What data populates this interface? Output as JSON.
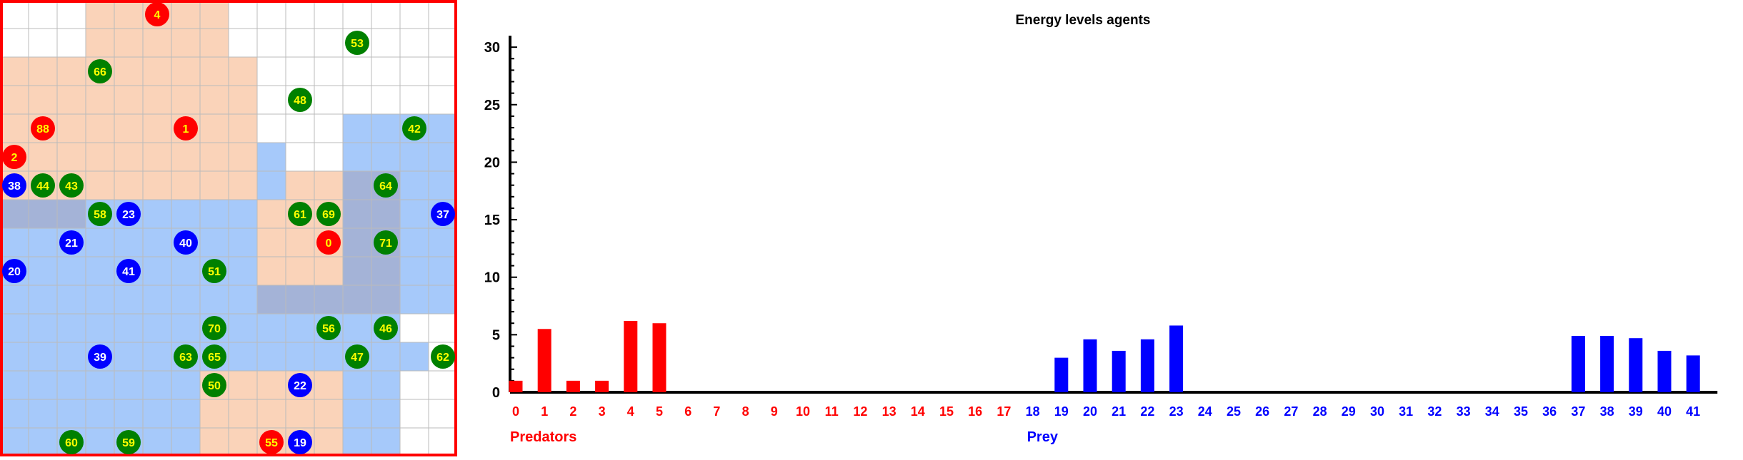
{
  "colors": {
    "predator": "#ff0000",
    "prey": "#0000ff",
    "food": "#008000",
    "predator_label": "#ffff00",
    "prey_label": "#ffffff",
    "food_label": "#ffff00",
    "predator_zone": "#f5a873",
    "prey_zone": "#4d94f5",
    "grid_line": "#bbbbbb",
    "frame": "#ff0000"
  },
  "grid": {
    "rows": 16,
    "cols": 16,
    "zones": [
      {
        "kind": "predator",
        "cells": [
          [
            3,
            0
          ],
          [
            4,
            0
          ],
          [
            5,
            0
          ],
          [
            6,
            0
          ],
          [
            7,
            0
          ],
          [
            3,
            1
          ],
          [
            4,
            1
          ],
          [
            5,
            1
          ],
          [
            6,
            1
          ],
          [
            7,
            1
          ],
          [
            0,
            2
          ],
          [
            1,
            2
          ],
          [
            2,
            2
          ],
          [
            3,
            2
          ],
          [
            4,
            2
          ],
          [
            5,
            2
          ],
          [
            6,
            2
          ],
          [
            7,
            2
          ],
          [
            8,
            2
          ],
          [
            0,
            3
          ],
          [
            1,
            3
          ],
          [
            2,
            3
          ],
          [
            3,
            3
          ],
          [
            4,
            3
          ],
          [
            5,
            3
          ],
          [
            6,
            3
          ],
          [
            7,
            3
          ],
          [
            8,
            3
          ],
          [
            0,
            4
          ],
          [
            1,
            4
          ],
          [
            2,
            4
          ],
          [
            3,
            4
          ],
          [
            4,
            4
          ],
          [
            5,
            4
          ],
          [
            6,
            4
          ],
          [
            7,
            4
          ],
          [
            8,
            4
          ],
          [
            0,
            5
          ],
          [
            1,
            5
          ],
          [
            2,
            5
          ],
          [
            3,
            5
          ],
          [
            4,
            5
          ],
          [
            5,
            5
          ],
          [
            6,
            5
          ],
          [
            7,
            5
          ],
          [
            8,
            5
          ],
          [
            0,
            6
          ],
          [
            1,
            6
          ],
          [
            2,
            6
          ],
          [
            3,
            6
          ],
          [
            4,
            6
          ],
          [
            5,
            6
          ],
          [
            6,
            6
          ],
          [
            7,
            6
          ],
          [
            8,
            6
          ],
          [
            0,
            7
          ],
          [
            1,
            7
          ],
          [
            2,
            7
          ],
          [
            10,
            6
          ],
          [
            11,
            6
          ],
          [
            12,
            6
          ],
          [
            13,
            6
          ],
          [
            9,
            7
          ],
          [
            10,
            7
          ],
          [
            11,
            7
          ],
          [
            12,
            7
          ],
          [
            13,
            7
          ],
          [
            9,
            8
          ],
          [
            10,
            8
          ],
          [
            11,
            8
          ],
          [
            12,
            8
          ],
          [
            13,
            8
          ],
          [
            9,
            9
          ],
          [
            10,
            9
          ],
          [
            11,
            9
          ],
          [
            12,
            9
          ],
          [
            13,
            9
          ],
          [
            9,
            10
          ],
          [
            10,
            10
          ],
          [
            11,
            10
          ],
          [
            12,
            10
          ],
          [
            13,
            10
          ],
          [
            7,
            13
          ],
          [
            8,
            13
          ],
          [
            9,
            13
          ],
          [
            10,
            13
          ],
          [
            11,
            13
          ],
          [
            7,
            14
          ],
          [
            8,
            14
          ],
          [
            9,
            14
          ],
          [
            10,
            14
          ],
          [
            11,
            14
          ],
          [
            7,
            15
          ],
          [
            8,
            15
          ],
          [
            9,
            15
          ],
          [
            10,
            15
          ],
          [
            11,
            15
          ]
        ]
      },
      {
        "kind": "prey",
        "cells": [
          [
            12,
            4
          ],
          [
            13,
            4
          ],
          [
            14,
            4
          ],
          [
            15,
            4
          ],
          [
            9,
            5
          ],
          [
            12,
            5
          ],
          [
            13,
            5
          ],
          [
            14,
            5
          ],
          [
            15,
            5
          ],
          [
            9,
            6
          ],
          [
            12,
            6
          ],
          [
            13,
            6
          ],
          [
            14,
            6
          ],
          [
            15,
            6
          ],
          [
            0,
            7
          ],
          [
            1,
            7
          ],
          [
            2,
            7
          ],
          [
            3,
            7
          ],
          [
            4,
            7
          ],
          [
            5,
            7
          ],
          [
            6,
            7
          ],
          [
            7,
            7
          ],
          [
            8,
            7
          ],
          [
            12,
            7
          ],
          [
            13,
            7
          ],
          [
            14,
            7
          ],
          [
            15,
            7
          ],
          [
            0,
            8
          ],
          [
            1,
            8
          ],
          [
            2,
            8
          ],
          [
            3,
            8
          ],
          [
            4,
            8
          ],
          [
            5,
            8
          ],
          [
            6,
            8
          ],
          [
            7,
            8
          ],
          [
            8,
            8
          ],
          [
            12,
            8
          ],
          [
            13,
            8
          ],
          [
            14,
            8
          ],
          [
            15,
            8
          ],
          [
            0,
            9
          ],
          [
            1,
            9
          ],
          [
            2,
            9
          ],
          [
            3,
            9
          ],
          [
            4,
            9
          ],
          [
            5,
            9
          ],
          [
            6,
            9
          ],
          [
            7,
            9
          ],
          [
            8,
            9
          ],
          [
            12,
            9
          ],
          [
            13,
            9
          ],
          [
            14,
            9
          ],
          [
            15,
            9
          ],
          [
            0,
            10
          ],
          [
            1,
            10
          ],
          [
            2,
            10
          ],
          [
            3,
            10
          ],
          [
            4,
            10
          ],
          [
            5,
            10
          ],
          [
            6,
            10
          ],
          [
            7,
            10
          ],
          [
            8,
            10
          ],
          [
            9,
            10
          ],
          [
            10,
            10
          ],
          [
            11,
            10
          ],
          [
            12,
            10
          ],
          [
            13,
            10
          ],
          [
            14,
            10
          ],
          [
            15,
            10
          ],
          [
            0,
            11
          ],
          [
            1,
            11
          ],
          [
            2,
            11
          ],
          [
            3,
            11
          ],
          [
            4,
            11
          ],
          [
            5,
            11
          ],
          [
            6,
            11
          ],
          [
            7,
            11
          ],
          [
            8,
            11
          ],
          [
            9,
            11
          ],
          [
            10,
            11
          ],
          [
            11,
            11
          ],
          [
            12,
            11
          ],
          [
            13,
            11
          ],
          [
            0,
            12
          ],
          [
            1,
            12
          ],
          [
            2,
            12
          ],
          [
            3,
            12
          ],
          [
            4,
            12
          ],
          [
            5,
            12
          ],
          [
            6,
            12
          ],
          [
            7,
            12
          ],
          [
            8,
            12
          ],
          [
            9,
            12
          ],
          [
            10,
            12
          ],
          [
            11,
            12
          ],
          [
            12,
            12
          ],
          [
            13,
            12
          ],
          [
            14,
            12
          ],
          [
            0,
            13
          ],
          [
            1,
            13
          ],
          [
            2,
            13
          ],
          [
            3,
            13
          ],
          [
            4,
            13
          ],
          [
            5,
            13
          ],
          [
            6,
            13
          ],
          [
            12,
            13
          ],
          [
            13,
            13
          ],
          [
            0,
            14
          ],
          [
            1,
            14
          ],
          [
            2,
            14
          ],
          [
            3,
            14
          ],
          [
            4,
            14
          ],
          [
            5,
            14
          ],
          [
            6,
            14
          ],
          [
            12,
            14
          ],
          [
            13,
            14
          ],
          [
            0,
            15
          ],
          [
            1,
            15
          ],
          [
            2,
            15
          ],
          [
            3,
            15
          ],
          [
            4,
            15
          ],
          [
            5,
            15
          ],
          [
            6,
            15
          ],
          [
            12,
            15
          ],
          [
            13,
            15
          ]
        ]
      }
    ],
    "agents": [
      {
        "id": "4",
        "type": "predator",
        "col": 5,
        "row": 0
      },
      {
        "id": "53",
        "type": "food",
        "col": 12,
        "row": 1
      },
      {
        "id": "66",
        "type": "food",
        "col": 3,
        "row": 2
      },
      {
        "id": "48",
        "type": "food",
        "col": 10,
        "row": 3
      },
      {
        "id": "88",
        "type": "predator",
        "col": 1,
        "row": 4
      },
      {
        "id": "1",
        "type": "predator",
        "col": 6,
        "row": 4
      },
      {
        "id": "42",
        "type": "food",
        "col": 14,
        "row": 4
      },
      {
        "id": "2",
        "type": "predator",
        "col": 0,
        "row": 5
      },
      {
        "id": "38",
        "type": "prey",
        "col": 0,
        "row": 6
      },
      {
        "id": "44",
        "type": "food",
        "col": 1,
        "row": 6
      },
      {
        "id": "43",
        "type": "food",
        "col": 2,
        "row": 6
      },
      {
        "id": "64",
        "type": "food",
        "col": 13,
        "row": 6
      },
      {
        "id": "58",
        "type": "food",
        "col": 3,
        "row": 7
      },
      {
        "id": "23",
        "type": "prey",
        "col": 4,
        "row": 7
      },
      {
        "id": "61",
        "type": "food",
        "col": 10,
        "row": 7
      },
      {
        "id": "69",
        "type": "food",
        "col": 11,
        "row": 7
      },
      {
        "id": "37",
        "type": "prey",
        "col": 15,
        "row": 7
      },
      {
        "id": "21",
        "type": "prey",
        "col": 2,
        "row": 8
      },
      {
        "id": "40",
        "type": "prey",
        "col": 6,
        "row": 8
      },
      {
        "id": "0",
        "type": "predator",
        "col": 11,
        "row": 8
      },
      {
        "id": "71",
        "type": "food",
        "col": 13,
        "row": 8
      },
      {
        "id": "20",
        "type": "prey",
        "col": 0,
        "row": 9
      },
      {
        "id": "41",
        "type": "prey",
        "col": 4,
        "row": 9
      },
      {
        "id": "51",
        "type": "food",
        "col": 7,
        "row": 9
      },
      {
        "id": "70",
        "type": "food",
        "col": 7,
        "row": 11
      },
      {
        "id": "56",
        "type": "food",
        "col": 11,
        "row": 11
      },
      {
        "id": "46",
        "type": "food",
        "col": 13,
        "row": 11
      },
      {
        "id": "39",
        "type": "prey",
        "col": 3,
        "row": 12
      },
      {
        "id": "63",
        "type": "food",
        "col": 6,
        "row": 12
      },
      {
        "id": "65",
        "type": "food",
        "col": 7,
        "row": 12
      },
      {
        "id": "47",
        "type": "food",
        "col": 12,
        "row": 12
      },
      {
        "id": "62",
        "type": "food",
        "col": 15,
        "row": 12
      },
      {
        "id": "50",
        "type": "food",
        "col": 7,
        "row": 13
      },
      {
        "id": "22",
        "type": "prey",
        "col": 10,
        "row": 13
      },
      {
        "id": "60",
        "type": "food",
        "col": 2,
        "row": 15
      },
      {
        "id": "59",
        "type": "food",
        "col": 4,
        "row": 15
      },
      {
        "id": "55",
        "type": "predator",
        "col": 9,
        "row": 15
      },
      {
        "id": "19",
        "type": "prey",
        "col": 10,
        "row": 15
      }
    ]
  },
  "chart_data": {
    "type": "bar",
    "title": "Energy levels agents",
    "xlabel": "",
    "ylabel": "",
    "ylim": [
      0,
      31
    ],
    "yticks": [
      0,
      5,
      10,
      15,
      20,
      25,
      30
    ],
    "categories": [
      "0",
      "1",
      "2",
      "3",
      "4",
      "5",
      "6",
      "7",
      "8",
      "9",
      "10",
      "11",
      "12",
      "13",
      "14",
      "15",
      "16",
      "17",
      "18",
      "19",
      "20",
      "21",
      "22",
      "23",
      "24",
      "25",
      "26",
      "27",
      "28",
      "29",
      "30",
      "31",
      "32",
      "33",
      "34",
      "35",
      "36",
      "37",
      "38",
      "39",
      "40",
      "41"
    ],
    "category_groups": [
      {
        "label": "Predators",
        "from": 0,
        "to": 17,
        "color": "#ff0000"
      },
      {
        "label": "Prey",
        "from": 18,
        "to": 41,
        "color": "#0000ff"
      }
    ],
    "values": [
      1,
      5.5,
      1,
      1,
      6.2,
      6,
      0,
      0,
      0,
      0,
      0,
      0,
      0,
      0,
      0,
      0,
      0,
      0,
      0,
      3,
      4.6,
      3.6,
      4.6,
      5.8,
      0,
      0,
      0,
      0,
      0,
      0,
      0,
      0,
      0,
      0,
      0,
      0,
      0,
      4.9,
      4.9,
      4.7,
      3.6,
      3.2
    ],
    "grid": false,
    "legend": "none"
  }
}
